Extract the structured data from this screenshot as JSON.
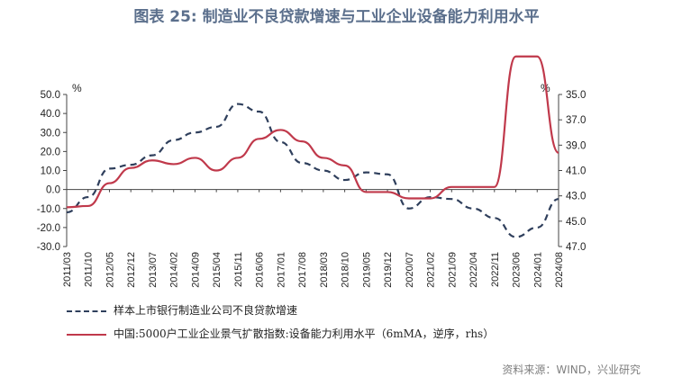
{
  "title": "图表 25: 制造业不良贷款增速与工业企业设备能力利用水平",
  "source": "资料来源：WIND，兴业研究",
  "chart_data": {
    "type": "line",
    "categories": [
      "2011/03",
      "2011/10",
      "2012/05",
      "2012/12",
      "2013/07",
      "2014/02",
      "2014/09",
      "2015/04",
      "2015/11",
      "2016/06",
      "2017/01",
      "2017/08",
      "2018/03",
      "2018/10",
      "2019/05",
      "2019/12",
      "2020/07",
      "2021/02",
      "2021/09",
      "2022/04",
      "2022/11",
      "2023/06",
      "2024/01",
      "2024/08"
    ],
    "left_axis": {
      "unit": "%",
      "ylim": [
        -30,
        50
      ],
      "ticks": [
        "50.0",
        "40.0",
        "30.0",
        "20.0",
        "10.0",
        "0.0",
        "-10.0",
        "-20.0",
        "-30.0"
      ]
    },
    "right_axis": {
      "unit": "%",
      "ylim": [
        35,
        47
      ],
      "inverted": true,
      "ticks": [
        "35.0",
        "37.0",
        "39.0",
        "41.0",
        "43.0",
        "45.0",
        "47.0"
      ]
    },
    "series": [
      {
        "name": "样本上市银行制造业公司不良贷款增速",
        "axis": "left",
        "style": "dashed",
        "color": "#2f3f5c",
        "points": [
          [
            "2011/03",
            -12
          ],
          [
            "2011/10",
            -4
          ],
          [
            "2012/05",
            11
          ],
          [
            "2012/12",
            13
          ],
          [
            "2013/07",
            18
          ],
          [
            "2014/02",
            26
          ],
          [
            "2014/09",
            30
          ],
          [
            "2015/04",
            33
          ],
          [
            "2015/11",
            45
          ],
          [
            "2016/06",
            41
          ],
          [
            "2017/01",
            25
          ],
          [
            "2017/08",
            14
          ],
          [
            "2018/03",
            10
          ],
          [
            "2018/10",
            5
          ],
          [
            "2019/05",
            9
          ],
          [
            "2019/12",
            8
          ],
          [
            "2020/07",
            -10
          ],
          [
            "2021/02",
            -4
          ],
          [
            "2021/09",
            -5
          ],
          [
            "2022/04",
            -10
          ],
          [
            "2022/11",
            -15
          ],
          [
            "2023/06",
            -25
          ],
          [
            "2024/01",
            -20
          ],
          [
            "2024/08",
            -5
          ]
        ]
      },
      {
        "name": "中国:5000户工业企业景气扩散指数:设备能力利用水平（6mMA，逆序，rhs）",
        "axis": "right",
        "style": "solid",
        "color": "#c0394b",
        "points": [
          [
            "2011/03",
            43.9
          ],
          [
            "2011/10",
            43.8
          ],
          [
            "2012/05",
            42.0
          ],
          [
            "2012/12",
            40.8
          ],
          [
            "2013/07",
            40.2
          ],
          [
            "2014/02",
            40.5
          ],
          [
            "2014/09",
            40.0
          ],
          [
            "2015/04",
            41.0
          ],
          [
            "2015/11",
            40.0
          ],
          [
            "2016/06",
            38.5
          ],
          [
            "2017/01",
            37.8
          ],
          [
            "2017/08",
            38.7
          ],
          [
            "2018/03",
            40.0
          ],
          [
            "2018/10",
            40.6
          ],
          [
            "2019/05",
            42.7
          ],
          [
            "2019/12",
            42.7
          ],
          [
            "2020/07",
            43.2
          ],
          [
            "2021/02",
            43.2
          ],
          [
            "2021/09",
            42.3
          ],
          [
            "2022/04",
            42.3
          ],
          [
            "2022/11",
            42.3
          ],
          [
            "2023/06",
            32.0
          ],
          [
            "2024/01",
            32.0
          ],
          [
            "2024/08",
            39.6
          ]
        ]
      }
    ],
    "legend": [
      "样本上市银行制造业公司不良贷款增速",
      "中国:5000户工业企业景气扩散指数:设备能力利用水平（6mMA，逆序，rhs）"
    ]
  }
}
